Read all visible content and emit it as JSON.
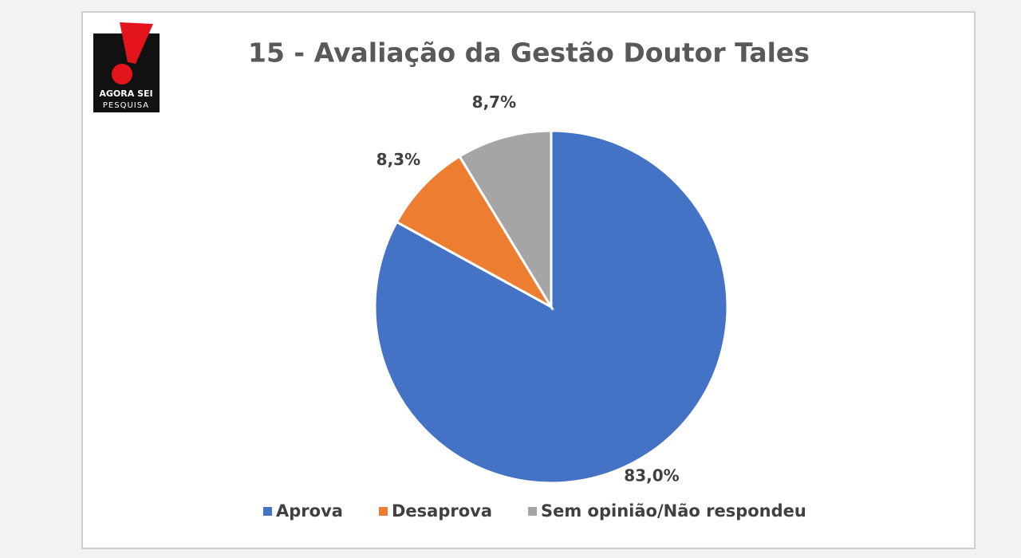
{
  "logo": {
    "line1": "AGORA SEI",
    "line2": "PESQUISA"
  },
  "chart_data": {
    "type": "pie",
    "title": "15 - Avaliação da Gestão Doutor Tales",
    "categories": [
      "Aprova",
      "Desaprova",
      "Sem opinião/Não respondeu"
    ],
    "values": [
      83.0,
      8.3,
      8.7
    ],
    "value_labels": [
      "83,0%",
      "8,3%",
      "8,7%"
    ],
    "colors": [
      "#4472c4",
      "#ed7d31",
      "#a5a5a5"
    ],
    "legend": "bottom"
  }
}
